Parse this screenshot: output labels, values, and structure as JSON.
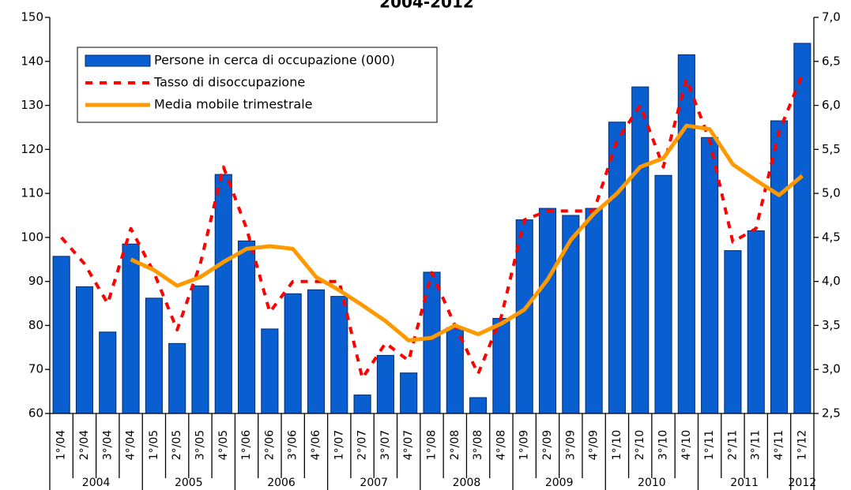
{
  "chart_data": {
    "type": "bar",
    "title": "2004-2012",
    "categories": [
      "1°/04",
      "2°/04",
      "3°/04",
      "4°/04",
      "1°/05",
      "2°/05",
      "3°/05",
      "4°/05",
      "1°/06",
      "2°/06",
      "3°/06",
      "4°/06",
      "1°/07",
      "2°/07",
      "3°/07",
      "4°/07",
      "1°/08",
      "2°/08",
      "3°/08",
      "4°/08",
      "1°/09",
      "2°/09",
      "3°/09",
      "4°/09",
      "1°/10",
      "2°/10",
      "3°/10",
      "4°/10",
      "1°/11",
      "2°/11",
      "3°/11",
      "4°/11",
      "1°/12"
    ],
    "year_groups": [
      "2004",
      "2005",
      "2006",
      "2007",
      "2008",
      "2009",
      "2010",
      "2011",
      "2012"
    ],
    "series": [
      {
        "name": "Persone in cerca di occupazione (000)",
        "type": "bar",
        "color": "#0a5fd0",
        "axis": "y",
        "values": [
          95.7,
          88.8,
          78.5,
          98.5,
          86.2,
          75.9,
          89.0,
          114.3,
          99.2,
          79.2,
          87.2,
          88.1,
          86.6,
          64.2,
          73.2,
          69.2,
          92.1,
          79.5,
          63.6,
          81.6,
          104.0,
          106.6,
          105.0,
          106.6,
          126.2,
          134.2,
          114.1,
          141.5,
          122.7,
          97.0,
          101.5,
          126.5,
          144.1
        ]
      },
      {
        "name": "Tasso di disoccupazione",
        "type": "line",
        "dash": true,
        "color": "#ff0000",
        "axis": "y2",
        "values": [
          4.5,
          4.2,
          3.75,
          4.6,
          4.1,
          3.45,
          4.2,
          5.3,
          4.6,
          3.65,
          4.0,
          4.0,
          4.0,
          2.9,
          3.3,
          3.1,
          4.1,
          3.5,
          2.95,
          3.6,
          4.7,
          4.8,
          4.8,
          4.8,
          5.6,
          6.0,
          5.3,
          6.3,
          5.6,
          4.45,
          4.6,
          5.7,
          6.35
        ]
      },
      {
        "name": "Media mobile trimestrale",
        "type": "line",
        "dash": false,
        "color": "#ff9900",
        "axis": "y2",
        "values": [
          null,
          null,
          null,
          4.25,
          4.13,
          3.95,
          4.05,
          4.22,
          4.37,
          4.4,
          4.37,
          4.05,
          3.9,
          3.73,
          3.55,
          3.33,
          3.36,
          3.5,
          3.4,
          3.52,
          3.68,
          4.02,
          4.47,
          4.77,
          5.0,
          5.3,
          5.4,
          5.77,
          5.73,
          5.33,
          5.15,
          4.98,
          5.2
        ]
      }
    ],
    "ylim": [
      60,
      150
    ],
    "yticks": [
      60,
      70,
      80,
      90,
      100,
      110,
      120,
      130,
      140,
      150
    ],
    "y2lim": [
      2.5,
      7.0
    ],
    "y2ticks": [
      {
        "value": 2.5,
        "label": "2,5"
      },
      {
        "value": 3.0,
        "label": "3,0"
      },
      {
        "value": 3.5,
        "label": "3,5"
      },
      {
        "value": 4.0,
        "label": "4,0"
      },
      {
        "value": 4.5,
        "label": "4,5"
      },
      {
        "value": 5.0,
        "label": "5,0"
      },
      {
        "value": 5.5,
        "label": "5,5"
      },
      {
        "value": 6.0,
        "label": "6,0"
      },
      {
        "value": 6.5,
        "label": "6,5"
      },
      {
        "value": 7.0,
        "label": "7,0"
      }
    ],
    "grid": false,
    "legend": "top-left"
  }
}
